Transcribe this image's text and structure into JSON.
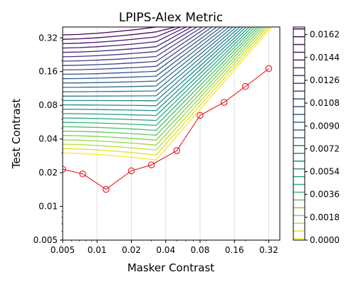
{
  "chart_data": {
    "type": "line",
    "title": "LPIPS-Alex Metric",
    "xlabel": "Masker Contrast",
    "ylabel": "Test Contrast",
    "xscale": "log",
    "yscale": "log",
    "xlim": [
      0.005,
      0.4
    ],
    "ylim": [
      0.005,
      0.4
    ],
    "x_ticks": [
      {
        "value": 0.005,
        "label": "0.005"
      },
      {
        "value": 0.01,
        "label": "0.01"
      },
      {
        "value": 0.02,
        "label": "0.02"
      },
      {
        "value": 0.04,
        "label": "0.04"
      },
      {
        "value": 0.08,
        "label": "0.08"
      },
      {
        "value": 0.16,
        "label": "0.16"
      },
      {
        "value": 0.32,
        "label": "0.32"
      }
    ],
    "y_ticks": [
      {
        "value": 0.005,
        "label": "0.005"
      },
      {
        "value": 0.01,
        "label": "0.01"
      },
      {
        "value": 0.02,
        "label": "0.02"
      },
      {
        "value": 0.04,
        "label": "0.04"
      },
      {
        "value": 0.08,
        "label": "0.08"
      },
      {
        "value": 0.16,
        "label": "0.16"
      },
      {
        "value": 0.32,
        "label": "0.32"
      }
    ],
    "vertical_grid": true,
    "threshold_series": {
      "color": "#e8000b",
      "x": [
        0.005,
        0.0075,
        0.012,
        0.02,
        0.03,
        0.05,
        0.08,
        0.13,
        0.2,
        0.32
      ],
      "y": [
        0.0215,
        0.0195,
        0.0142,
        0.0208,
        0.0235,
        0.0315,
        0.065,
        0.085,
        0.118,
        0.17
      ]
    },
    "contour": {
      "type": "contour",
      "colormap": "viridis",
      "level_count": 28,
      "colorbar_ticks": [
        "0.0000",
        "0.0018",
        "0.0036",
        "0.0054",
        "0.0072",
        "0.0090",
        "0.0108",
        "0.0126",
        "0.0144",
        "0.0162"
      ],
      "colorbar_range": [
        0,
        0.0168
      ]
    }
  }
}
